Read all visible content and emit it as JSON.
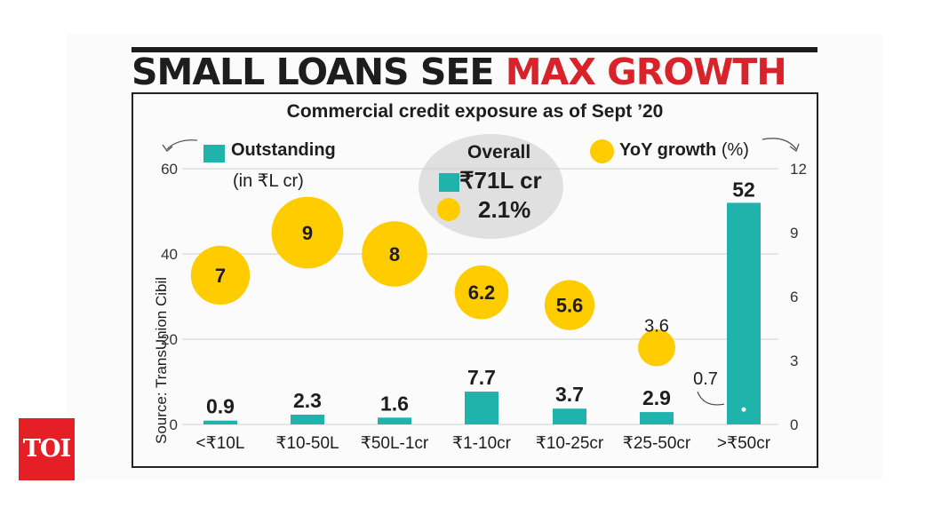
{
  "headline": {
    "part1": "SMALL LOANS SEE",
    "part2": "MAX GROWTH"
  },
  "chart_data": {
    "type": "bar",
    "title": "Commercial credit exposure as of Sept ’20",
    "source": "Source: TransUnion Cibil",
    "categories": [
      "<₹10L",
      "₹10-50L",
      "₹50L-1cr",
      "₹1-10cr",
      "₹10-25cr",
      "₹25-50cr",
      ">₹50cr"
    ],
    "series": [
      {
        "name": "Outstanding",
        "unit": "(in ₹L cr)",
        "kind": "bar",
        "axis": "left",
        "values": [
          0.9,
          2.3,
          1.6,
          7.7,
          3.7,
          2.9,
          52
        ],
        "labels": [
          "0.9",
          "2.3",
          "1.6",
          "7.7",
          "3.7",
          "2.9",
          "52"
        ]
      },
      {
        "name": "YoY growth",
        "unit": "(%)",
        "kind": "bubble",
        "axis": "right",
        "values": [
          7,
          9,
          8,
          6.2,
          5.6,
          3.6,
          0.7
        ],
        "labels": [
          "7",
          "9",
          "8",
          "6.2",
          "5.6",
          "3.6",
          "0.7"
        ]
      }
    ],
    "y_left": {
      "ticks": [
        "0",
        "20",
        "40",
        "60"
      ],
      "lim": [
        0,
        60
      ]
    },
    "y_right": {
      "ticks": [
        "0",
        "3",
        "6",
        "9",
        "12"
      ],
      "lim": [
        0,
        12
      ]
    },
    "overall": {
      "title": "Overall",
      "outstanding": "₹71L cr",
      "growth": "2.1%"
    },
    "grid": true,
    "colors": {
      "bar": "#1fb3ac",
      "bubble": "#ffcc00",
      "accent": "#d8232a"
    }
  },
  "logo": {
    "text": "TOI"
  }
}
